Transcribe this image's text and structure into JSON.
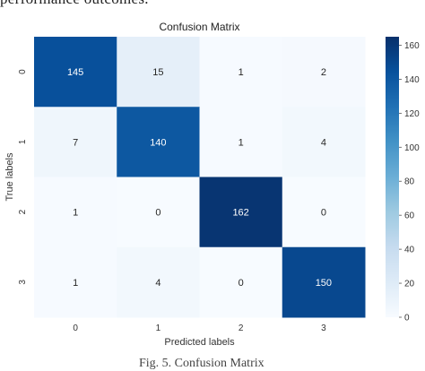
{
  "page": {
    "top_caption": "performance outcomes.",
    "bottom_caption": "Fig. 5. Confusion Matrix"
  },
  "chart_data": {
    "type": "heatmap",
    "title": "Confusion Matrix",
    "xlabel": "Predicted labels",
    "ylabel": "True labels",
    "x_categories": [
      "0",
      "1",
      "2",
      "3"
    ],
    "y_categories": [
      "0",
      "1",
      "2",
      "3"
    ],
    "values": [
      [
        145,
        15,
        1,
        2
      ],
      [
        7,
        140,
        1,
        4
      ],
      [
        1,
        0,
        162,
        0
      ],
      [
        1,
        4,
        0,
        150
      ]
    ],
    "colorbar": {
      "range": [
        0,
        165
      ],
      "ticks": [
        0,
        20,
        40,
        60,
        80,
        100,
        120,
        140,
        160
      ]
    },
    "colormap": {
      "low": "#f7fbff",
      "high": "#08306b",
      "stops": [
        "#f7fbff",
        "#deebf7",
        "#c6dbef",
        "#9ecae1",
        "#6baed6",
        "#4292c6",
        "#2171b5",
        "#08519c",
        "#08306b"
      ]
    },
    "text_color_light": "#ffffff",
    "text_color_dark": "#262626"
  }
}
